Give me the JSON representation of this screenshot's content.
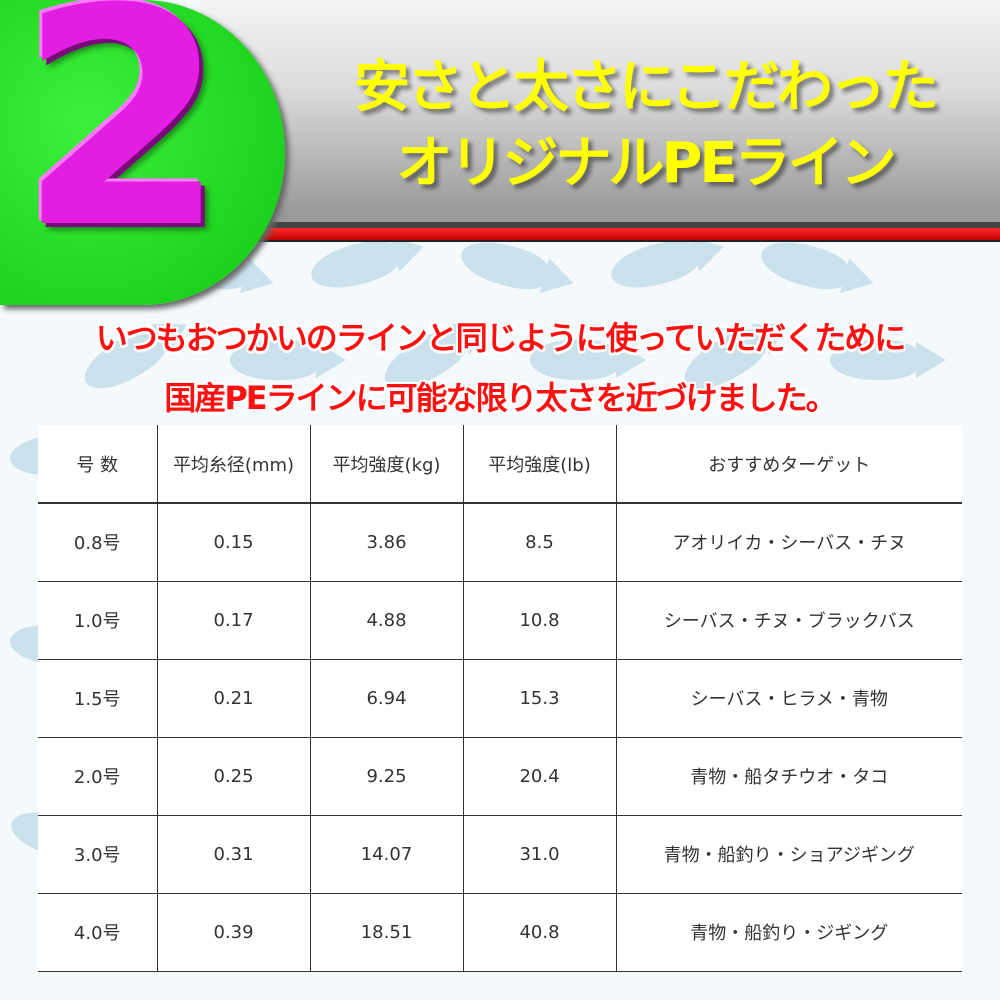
{
  "badge_number": "2",
  "headline": {
    "line1": "安さと太さにこだわった",
    "line2": "オリジナルPEライン"
  },
  "subheadline": {
    "line1": "いつもおつかいのラインと同じように使っていただくために",
    "line2": "国産PEラインに可能な限り太さを近づけました。"
  },
  "colors": {
    "badge_green": "#12c812",
    "number_magenta": "#e21ee2",
    "headline_yellow": "#ffff00",
    "sub_red": "#ff1010"
  },
  "table": {
    "headers": [
      "号 数",
      "平均糸径(mm)",
      "平均強度(kg)",
      "平均強度(lb)",
      "おすすめターゲット"
    ],
    "rows": [
      [
        "0.8号",
        "0.15",
        "3.86",
        "8.5",
        "アオリイカ・シーバス・チヌ"
      ],
      [
        "1.0号",
        "0.17",
        "4.88",
        "10.8",
        "シーバス・チヌ・ブラックバス"
      ],
      [
        "1.5号",
        "0.21",
        "6.94",
        "15.3",
        "シーバス・ヒラメ・青物"
      ],
      [
        "2.0号",
        "0.25",
        "9.25",
        "20.4",
        "青物・船タチウオ・タコ"
      ],
      [
        "3.0号",
        "0.31",
        "14.07",
        "31.0",
        "青物・船釣り・ショアジギング"
      ],
      [
        "4.0号",
        "0.39",
        "18.51",
        "40.8",
        "青物・船釣り・ジギング"
      ]
    ]
  }
}
